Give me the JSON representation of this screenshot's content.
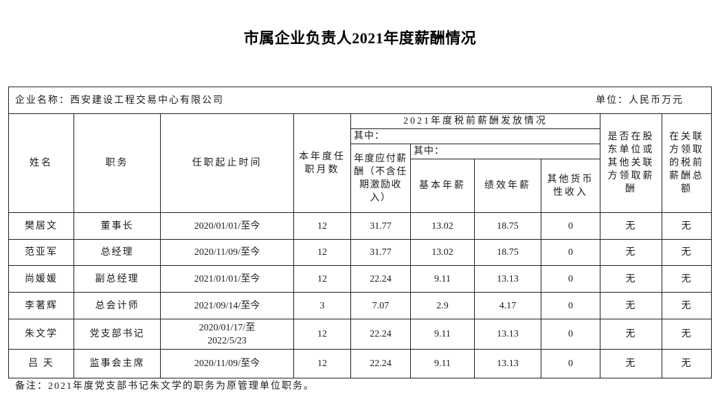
{
  "title": "市属企业负责人2021年度薪酬情况",
  "table": {
    "company_label": "企业名称：",
    "company_name": "西安建设工程交易中心有限公司",
    "unit_label": "单位：",
    "unit_value": "人民币万元",
    "headers": {
      "name": "姓名",
      "position": "职务",
      "tenure": "任职起止时间",
      "months": "本年度任职月数",
      "salary_group": "2021年度税前薪酬发放情况",
      "among_1": "其中：",
      "payable": "年度应付薪酬（不含任期激励收入）",
      "among_2": "其中：",
      "base_salary": "基本年薪",
      "performance_salary": "绩效年薪",
      "other_monetary": "其他货币性收入",
      "related_party_salary": "是否在股东单位或其他关联方领取薪酬",
      "related_party_total": "在关联方领取的税前薪酬总额"
    },
    "rows": [
      {
        "name": "樊居文",
        "position": "董事长",
        "tenure": "2020/01/01/至今",
        "months": "12",
        "payable": "31.77",
        "base": "13.02",
        "performance": "18.75",
        "other": "0",
        "related_salary": "无",
        "related_total": "无"
      },
      {
        "name": "范亚军",
        "position": "总经理",
        "tenure": "2020/11/09/至今",
        "months": "12",
        "payable": "31.77",
        "base": "13.02",
        "performance": "18.75",
        "other": "0",
        "related_salary": "无",
        "related_total": "无"
      },
      {
        "name": "尚媛媛",
        "position": "副总经理",
        "tenure": "2021/01/01/至今",
        "months": "12",
        "payable": "22.24",
        "base": "9.11",
        "performance": "13.13",
        "other": "0",
        "related_salary": "无",
        "related_total": "无"
      },
      {
        "name": "李著辉",
        "position": "总会计师",
        "tenure": "2021/09/14/至今",
        "months": "3",
        "payable": "7.07",
        "base": "2.9",
        "performance": "4.17",
        "other": "0",
        "related_salary": "无",
        "related_total": "无"
      },
      {
        "name": "朱文学",
        "position": "党支部书记",
        "tenure": "2020/01/17/至\n2022/5/23",
        "months": "12",
        "payable": "22.24",
        "base": "9.11",
        "performance": "13.13",
        "other": "0",
        "related_salary": "无",
        "related_total": "无"
      },
      {
        "name": "吕 天",
        "position": "监事会主席",
        "tenure": "2020/11/09/至今",
        "months": "12",
        "payable": "22.24",
        "base": "9.11",
        "performance": "13.13",
        "other": "0",
        "related_salary": "无",
        "related_total": "无"
      }
    ]
  },
  "note": "备注：2021年度党支部书记朱文学的职务为原管理单位职务。"
}
